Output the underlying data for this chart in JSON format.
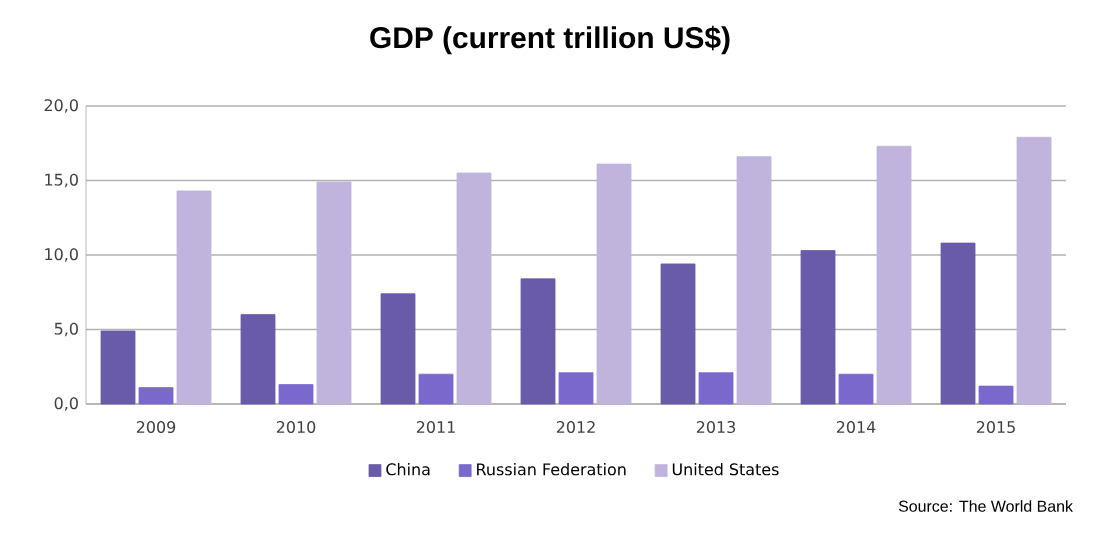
{
  "chart_data": {
    "type": "bar",
    "title": "GDP (current trillion US$)",
    "categories": [
      "2009",
      "2010",
      "2011",
      "2012",
      "2013",
      "2014",
      "2015"
    ],
    "series": [
      {
        "name": "China",
        "color": "#6a5aaa",
        "values": [
          4.9,
          6.0,
          7.4,
          8.4,
          9.4,
          10.3,
          10.8
        ]
      },
      {
        "name": "Russian Federation",
        "color": "#7b68cc",
        "values": [
          1.1,
          1.3,
          2.0,
          2.1,
          2.1,
          2.0,
          1.2
        ]
      },
      {
        "name": "United States",
        "color": "#c0b4dc",
        "values": [
          14.3,
          14.9,
          15.5,
          16.1,
          16.6,
          17.3,
          17.9
        ]
      }
    ],
    "ylim": [
      0,
      20
    ],
    "yticks": [
      {
        "value": 0,
        "label": "0,0"
      },
      {
        "value": 5,
        "label": "5,0"
      },
      {
        "value": 10,
        "label": "10,0"
      },
      {
        "value": 15,
        "label": "15,0"
      },
      {
        "value": 20,
        "label": "20,0"
      }
    ],
    "grid": "y",
    "legend": "bottom",
    "annotations": [
      "Source: The World Bank"
    ]
  }
}
